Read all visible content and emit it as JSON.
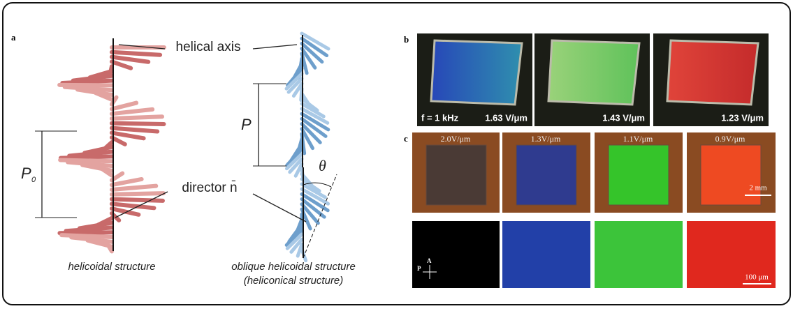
{
  "panel_a": {
    "label": "a",
    "helical_axis": "helical axis",
    "pitch": "P",
    "pitch0": "P",
    "pitch0_subscript": "0",
    "director": "director n̄",
    "angle": "θ",
    "left_caption": "helicoidal structure",
    "right_caption": [
      "oblique helicoidal structure",
      "(heliconical structure)"
    ]
  },
  "panel_b": {
    "label": "b",
    "frequency": "f = 1 kHz",
    "fields": [
      "1.63 V/μm",
      "1.43 V/μm",
      "1.23 V/μm"
    ]
  },
  "panel_c": {
    "label": "c",
    "fields": [
      "2.0V/μm",
      "1.3V/μm",
      "1.1V/μm",
      "0.9V/μm"
    ],
    "scale_top": "2 mm",
    "scale_bottom": "100 μm",
    "analyzer": "A",
    "polarizer": "P"
  }
}
